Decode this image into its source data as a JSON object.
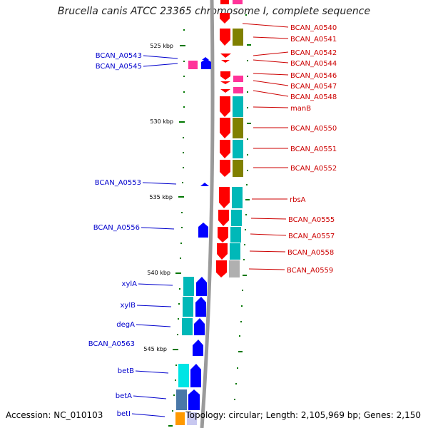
{
  "title": "Brucella canis ATCC 23365 chromosome I, complete sequence",
  "footer": {
    "accession": "Accession: NC_010103",
    "summary": "Topology: circular; Length: 2,105,969 bp; Genes: 2,150"
  },
  "colors": {
    "forward_strand": "#ff0000",
    "reverse_strand": "#0000ff",
    "left_labels": "#0000cc",
    "right_labels": "#cc0000",
    "cog_olive": "#808000",
    "cog_teal": "#00b8b8",
    "cog_pink": "#ff3399",
    "cog_gray": "#b0b0b0",
    "cog_orange": "#ff9900"
  },
  "scale_labels": [
    "525 kbp",
    "530 kbp",
    "535 kbp",
    "540 kbp",
    "545 kbp"
  ],
  "left_genes": [
    "BCAN_A0543",
    "BCAN_A0545",
    "BCAN_A0553",
    "BCAN_A0556",
    "xylA",
    "xylB",
    "degA",
    "BCAN_A0563",
    "betB",
    "betA",
    "betI"
  ],
  "right_genes": [
    "BCAN_A0540",
    "BCAN_A0541",
    "BCAN_A0542",
    "BCAN_A0544",
    "BCAN_A0546",
    "BCAN_A0547",
    "BCAN_A0548",
    "manB",
    "BCAN_A0550",
    "BCAN_A0551",
    "BCAN_A0552",
    "rbsA",
    "BCAN_A0555",
    "BCAN_A0557",
    "BCAN_A0558",
    "BCAN_A0559"
  ]
}
